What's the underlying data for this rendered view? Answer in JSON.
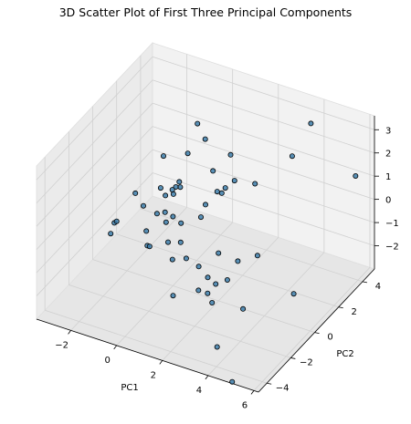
{
  "chart_data": {
    "type": "scatter",
    "title": "3D Scatter Plot of First Three Principal Components",
    "xlabel": "PC1",
    "ylabel": "PC2",
    "zlabel": "",
    "xlim": [
      -3.5,
      6.2
    ],
    "ylim": [
      -4.7,
      5.0
    ],
    "zlim": [
      -3.0,
      3.6
    ],
    "xticks": [
      -2,
      0,
      2,
      4,
      6
    ],
    "yticks": [
      -4,
      -2,
      0,
      2,
      4
    ],
    "zticks": [
      -2,
      -1,
      0,
      1,
      2,
      3
    ],
    "grid": true,
    "points": [
      {
        "x": 4.1,
        "y": 3.7,
        "z": 3.3
      },
      {
        "x": 3.7,
        "y": 2.9,
        "z": 2.2
      },
      {
        "x": 6.0,
        "y": 3.8,
        "z": 1.6
      },
      {
        "x": 2.6,
        "y": 1.9,
        "z": 1.2
      },
      {
        "x": 1.6,
        "y": 2.1,
        "z": 0.9
      },
      {
        "x": 0.8,
        "y": 3.3,
        "z": 1.1
      },
      {
        "x": -0.1,
        "y": 2.9,
        "z": 1.7
      },
      {
        "x": -0.7,
        "y": 3.4,
        "z": 1.9
      },
      {
        "x": -0.6,
        "y": 2.4,
        "z": 1.2
      },
      {
        "x": -1.4,
        "y": 1.9,
        "z": 1.1
      },
      {
        "x": -0.3,
        "y": 1.2,
        "z": 0.5
      },
      {
        "x": 0.5,
        "y": 2.4,
        "z": 0.8
      },
      {
        "x": 1.3,
        "y": 1.9,
        "z": 0.6
      },
      {
        "x": 0.8,
        "y": 1.2,
        "z": 0.1
      },
      {
        "x": 1.0,
        "y": 1.8,
        "z": 0.4
      },
      {
        "x": 1.2,
        "y": 1.8,
        "z": 0.4
      },
      {
        "x": -1.0,
        "y": 0.9,
        "z": 0.4
      },
      {
        "x": -0.5,
        "y": 1.5,
        "z": 0.5
      },
      {
        "x": -0.6,
        "y": 1.4,
        "z": 0.3
      },
      {
        "x": -0.7,
        "y": 1.3,
        "z": 0.2
      },
      {
        "x": -0.6,
        "y": 1.2,
        "z": 0.1
      },
      {
        "x": -0.9,
        "y": 1.1,
        "z": 0.0
      },
      {
        "x": -1.9,
        "y": 0.5,
        "z": 0.1
      },
      {
        "x": -1.6,
        "y": 0.6,
        "z": -0.4
      },
      {
        "x": -0.9,
        "y": 0.4,
        "z": -0.4
      },
      {
        "x": -0.6,
        "y": 0.5,
        "z": -0.3
      },
      {
        "x": -0.2,
        "y": 0.4,
        "z": -0.3
      },
      {
        "x": -0.4,
        "y": 0.2,
        "z": -0.5
      },
      {
        "x": 0.2,
        "y": 0.3,
        "z": -0.4
      },
      {
        "x": 0.0,
        "y": -0.4,
        "z": -0.9
      },
      {
        "x": 0.6,
        "y": 1.2,
        "z": -0.5
      },
      {
        "x": -2.4,
        "y": -0.3,
        "z": -0.9
      },
      {
        "x": -2.4,
        "y": -0.6,
        "z": -1.2
      },
      {
        "x": -2.3,
        "y": -0.3,
        "z": -0.8
      },
      {
        "x": -1.0,
        "y": -0.3,
        "z": -0.8
      },
      {
        "x": -0.8,
        "y": -0.6,
        "z": -1.2
      },
      {
        "x": -0.7,
        "y": -0.6,
        "z": -1.2
      },
      {
        "x": 0.4,
        "y": -0.8,
        "z": -1.3
      },
      {
        "x": 0.5,
        "y": -0.3,
        "z": -0.8
      },
      {
        "x": 0.9,
        "y": -0.6,
        "z": -1.2
      },
      {
        "x": 1.5,
        "y": -0.7,
        "z": -1.3
      },
      {
        "x": 2.0,
        "y": -0.9,
        "z": -1.5
      },
      {
        "x": 2.4,
        "y": -1.0,
        "z": -1.6
      },
      {
        "x": 2.2,
        "y": -1.3,
        "z": -1.9
      },
      {
        "x": 2.5,
        "y": -1.5,
        "z": -2.1
      },
      {
        "x": 1.8,
        "y": -1.3,
        "z": -1.9
      },
      {
        "x": 2.8,
        "y": -0.8,
        "z": -1.4
      },
      {
        "x": 2.1,
        "y": -0.2,
        "z": -0.8
      },
      {
        "x": 3.0,
        "y": -0.3,
        "z": -0.8
      },
      {
        "x": 3.7,
        "y": 0.0,
        "z": -0.5
      },
      {
        "x": 3.8,
        "y": -1.4,
        "z": -2.0
      },
      {
        "x": 0.9,
        "y": -1.7,
        "z": -2.2
      },
      {
        "x": 3.4,
        "y": -2.8,
        "z": -3.0
      },
      {
        "x": 5.6,
        "y": -0.6,
        "z": -1.2
      },
      {
        "x": 5.0,
        "y": -4.6,
        "z": -3.0
      }
    ]
  }
}
